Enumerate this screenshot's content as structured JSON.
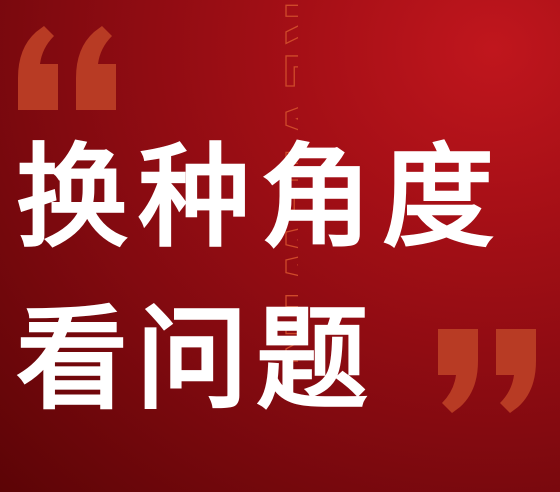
{
  "headline": {
    "line1": "换种角度",
    "line2": "看问题"
  },
  "background_word": "REVIEWIN",
  "icons": {
    "open_quote": "open-quote-mark-icon",
    "close_quote": "close-quote-mark-icon"
  },
  "colors": {
    "background_light": "#c0161d",
    "background_dark": "#5c0406",
    "quote_mark": "#b83b24",
    "outline_text": "#cf4a2a",
    "headline_text": "#ffffff"
  }
}
